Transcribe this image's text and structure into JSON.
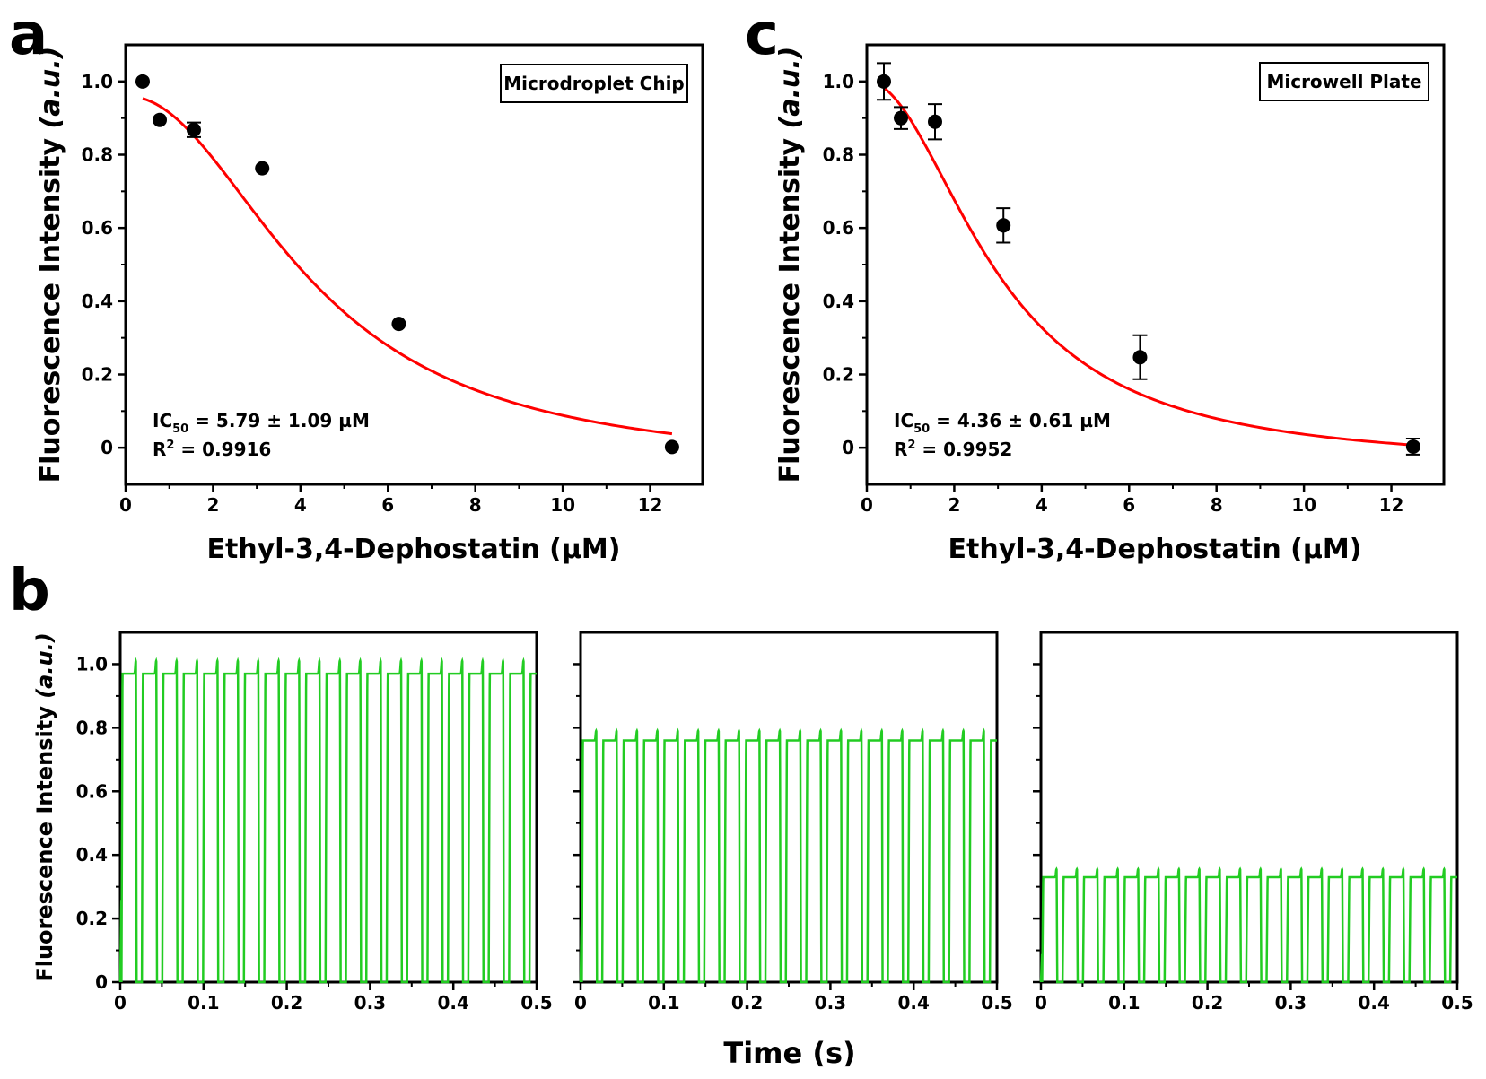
{
  "panel_labels": {
    "a": "a",
    "b": "b",
    "c": "c"
  },
  "colors": {
    "fit": "#ff0000",
    "trace": "#22cc22",
    "point": "#000000",
    "axis": "#000000"
  },
  "chart_data": [
    {
      "id": "a",
      "type": "scatter",
      "title": "",
      "xlabel": "Ethyl-3,4-Dephostatin (µM)",
      "ylabel_main": "Fluorescence Intensity ",
      "ylabel_units": "(a.u.)",
      "xlim": [
        0,
        13.2
      ],
      "ylim": [
        -0.1,
        1.1
      ],
      "xticks": [
        0,
        2,
        4,
        6,
        8,
        10,
        12
      ],
      "xtick_labels": [
        "0",
        "2",
        "4",
        "6",
        "8",
        "10",
        "12"
      ],
      "yticks": [
        0,
        0.2,
        0.4,
        0.6,
        0.8,
        1.0
      ],
      "ytick_labels": [
        "0",
        "0.2",
        "0.4",
        "0.6",
        "0.8",
        "1.0"
      ],
      "legend": "Microdroplet Chip",
      "annotation": {
        "ic_prefix": "IC",
        "ic_sub": "50",
        "ic_value": " = 5.79 ± 1.09 µM",
        "r_prefix": "R",
        "r_sup": "2",
        "r_value": " = 0.9916"
      },
      "points": [
        {
          "x": 0.39,
          "y": 1.0,
          "err": 0
        },
        {
          "x": 0.78,
          "y": 0.895,
          "err": 0
        },
        {
          "x": 1.56,
          "y": 0.868,
          "err": 0.02
        },
        {
          "x": 3.125,
          "y": 0.763,
          "err": 0
        },
        {
          "x": 6.25,
          "y": 0.338,
          "err": 0
        },
        {
          "x": 12.5,
          "y": 0.002,
          "err": 0
        }
      ],
      "fit": {
        "A1": 0.96,
        "A2": -0.06,
        "x0": 4.3,
        "p": 2.1,
        "xmin": 0.39,
        "xmax": 12.5
      }
    },
    {
      "id": "c",
      "type": "scatter",
      "title": "",
      "xlabel": "Ethyl-3,4-Dephostatin (µM)",
      "ylabel_main": "Fluorescence Intensity ",
      "ylabel_units": "(a.u.)",
      "xlim": [
        0,
        13.2
      ],
      "ylim": [
        -0.1,
        1.1
      ],
      "xticks": [
        0,
        2,
        4,
        6,
        8,
        10,
        12
      ],
      "xtick_labels": [
        "0",
        "2",
        "4",
        "6",
        "8",
        "10",
        "12"
      ],
      "yticks": [
        0,
        0.2,
        0.4,
        0.6,
        0.8,
        1.0
      ],
      "ytick_labels": [
        "0",
        "0.2",
        "0.4",
        "0.6",
        "0.8",
        "1.0"
      ],
      "legend": "Microwell Plate",
      "annotation": {
        "ic_prefix": "IC",
        "ic_sub": "50",
        "ic_value": " = 4.36 ± 0.61 µM",
        "r_prefix": "R",
        "r_sup": "2",
        "r_value": " = 0.9952"
      },
      "points": [
        {
          "x": 0.39,
          "y": 1.0,
          "err": 0.05
        },
        {
          "x": 0.78,
          "y": 0.9,
          "err": 0.03
        },
        {
          "x": 1.56,
          "y": 0.89,
          "err": 0.048
        },
        {
          "x": 3.125,
          "y": 0.607,
          "err": 0.047
        },
        {
          "x": 6.25,
          "y": 0.247,
          "err": 0.06
        },
        {
          "x": 12.5,
          "y": 0.003,
          "err": 0.022
        }
      ],
      "fit": {
        "A1": 1.0,
        "A2": -0.05,
        "x0": 3.0,
        "p": 2.0,
        "xmin": 0.39,
        "xmax": 12.5
      }
    },
    {
      "id": "b",
      "type": "line",
      "title": "",
      "xlabel": "Time (s)",
      "ylabel_main": "Fluorescence Intensity ",
      "ylabel_units": "(a.u.)",
      "xlim": [
        0,
        0.5
      ],
      "ylim": [
        0,
        1.1
      ],
      "xticks": [
        0,
        0.1,
        0.2,
        0.3,
        0.4,
        0.5
      ],
      "xtick_labels": [
        "0",
        "0.1",
        "0.2",
        "0.3",
        "0.4",
        "0.5"
      ],
      "yticks": [
        0,
        0.2,
        0.4,
        0.6,
        0.8,
        1.0
      ],
      "ytick_labels": [
        "0",
        "0.2",
        "0.4",
        "0.6",
        "0.8",
        "1.0"
      ],
      "series": [
        {
          "name": "panel 1",
          "plateau": 0.97,
          "peak": 1.01,
          "period": 0.0245,
          "duty": 0.74
        },
        {
          "name": "panel 2",
          "plateau": 0.76,
          "peak": 0.79,
          "period": 0.0245,
          "duty": 0.74
        },
        {
          "name": "panel 3",
          "plateau": 0.33,
          "peak": 0.355,
          "period": 0.0245,
          "duty": 0.74
        }
      ]
    }
  ]
}
